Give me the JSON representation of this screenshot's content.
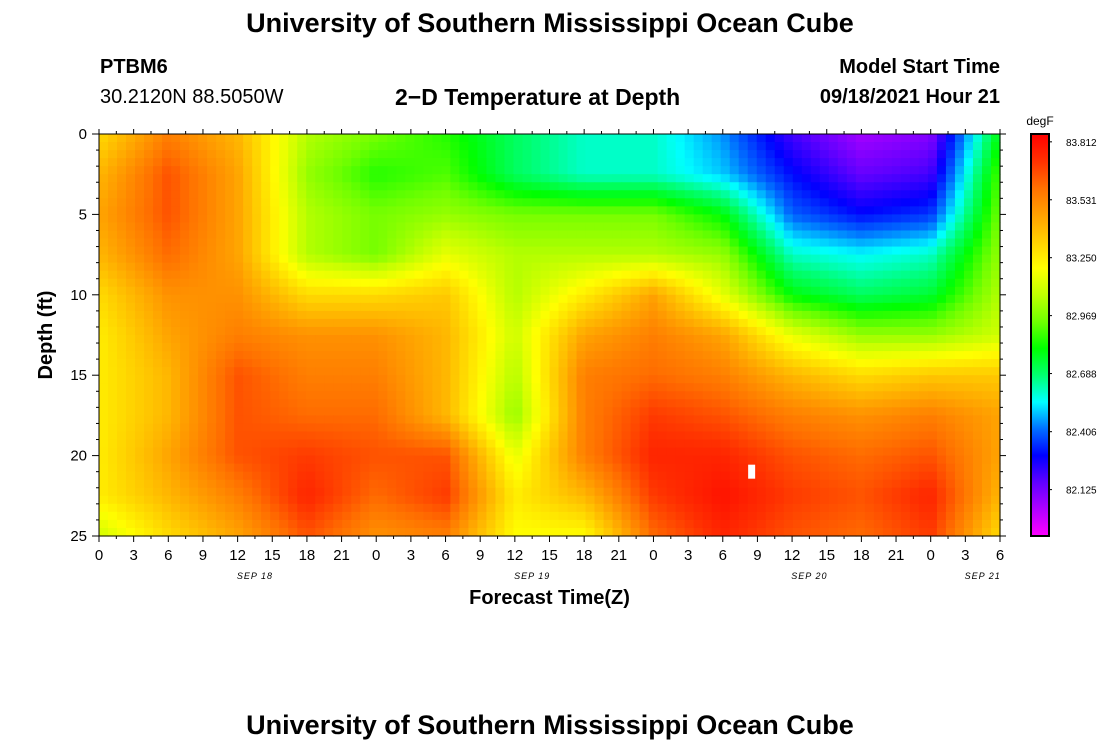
{
  "page": {
    "title_top": "University of Southern Mississippi Ocean Cube",
    "title_bottom": "University of Southern Mississippi Ocean Cube",
    "station_id": "PTBM6",
    "station_coords": "30.2120N  88.5050W",
    "plot_title": "2−D Temperature at Depth",
    "model_start_label": "Model Start Time",
    "model_start_value": "09/18/2021 Hour 21"
  },
  "colors": {
    "scale": [
      "#ff00ff",
      "#b000ff",
      "#6000ff",
      "#0000ff",
      "#0070ff",
      "#00ffff",
      "#00ff70",
      "#00ff00",
      "#70ff00",
      "#c0ff00",
      "#ffff00",
      "#ffd000",
      "#ffa000",
      "#ff7000",
      "#ff3000",
      "#ff0000"
    ],
    "marker": "#ffffff"
  },
  "chart_data": {
    "type": "heatmap",
    "title": "2−D Temperature at Depth",
    "xlabel": "Forecast Time(Z)",
    "ylabel": "Depth (ft)",
    "units": "degF",
    "x_ticks": [
      "0",
      "3",
      "6",
      "9",
      "12",
      "15",
      "18",
      "21",
      "0",
      "3",
      "6",
      "9",
      "12",
      "15",
      "18",
      "21",
      "0",
      "3",
      "6",
      "9",
      "12",
      "15",
      "18",
      "21",
      "0",
      "3",
      "6"
    ],
    "date_labels": [
      {
        "label": "SEP 18",
        "at_tick": 4.5
      },
      {
        "label": "SEP 19",
        "at_tick": 12.5
      },
      {
        "label": "SEP 20",
        "at_tick": 20.5
      },
      {
        "label": "SEP 21",
        "at_tick": 25.5
      }
    ],
    "y_ticks": [
      0,
      5,
      10,
      15,
      20,
      25
    ],
    "ylim": [
      0,
      25
    ],
    "xlim_hours": [
      0,
      78
    ],
    "colorbar": {
      "label": "degF",
      "min": 81.9,
      "max": 83.85,
      "ticks": [
        83.812,
        83.531,
        83.25,
        82.969,
        82.688,
        82.406,
        82.125
      ]
    },
    "times_hours": [
      0,
      6,
      12,
      18,
      24,
      30,
      36,
      42,
      48,
      54,
      60,
      66,
      72,
      78
    ],
    "depths_ft": [
      0,
      2.5,
      5,
      7.5,
      10,
      12.5,
      15,
      17.5,
      20,
      22.5,
      25
    ],
    "temperature_degF": [
      [
        83.3,
        83.55,
        83.4,
        83.05,
        82.95,
        82.85,
        82.7,
        82.6,
        82.6,
        82.45,
        82.2,
        82.05,
        82.1,
        82.8
      ],
      [
        83.4,
        83.65,
        83.45,
        83.0,
        82.85,
        82.9,
        82.7,
        82.6,
        82.6,
        82.5,
        82.3,
        82.15,
        82.2,
        82.9
      ],
      [
        83.45,
        83.65,
        83.45,
        83.05,
        82.95,
        83.0,
        82.95,
        82.95,
        82.95,
        82.8,
        82.4,
        82.3,
        82.35,
        82.95
      ],
      [
        83.4,
        83.6,
        83.45,
        83.05,
        82.95,
        83.15,
        83.05,
        83.05,
        83.05,
        83.0,
        82.6,
        82.55,
        82.6,
        83.0
      ],
      [
        83.3,
        83.5,
        83.5,
        83.3,
        83.3,
        83.35,
        83.05,
        83.25,
        83.45,
        83.15,
        82.8,
        82.7,
        82.75,
        83.05
      ],
      [
        83.25,
        83.45,
        83.55,
        83.5,
        83.5,
        83.4,
        83.1,
        83.45,
        83.55,
        83.45,
        83.15,
        83.0,
        83.0,
        83.1
      ],
      [
        83.25,
        83.4,
        83.65,
        83.55,
        83.55,
        83.4,
        83.05,
        83.55,
        83.6,
        83.55,
        83.4,
        83.3,
        83.35,
        83.35
      ],
      [
        83.25,
        83.4,
        83.65,
        83.6,
        83.6,
        83.4,
        83.0,
        83.55,
        83.7,
        83.65,
        83.55,
        83.5,
        83.55,
        83.45
      ],
      [
        83.25,
        83.45,
        83.65,
        83.7,
        83.65,
        83.65,
        83.15,
        83.55,
        83.75,
        83.75,
        83.65,
        83.6,
        83.65,
        83.45
      ],
      [
        83.25,
        83.4,
        83.55,
        83.75,
        83.6,
        83.7,
        83.25,
        83.4,
        83.7,
        83.8,
        83.7,
        83.65,
        83.75,
        83.4
      ],
      [
        83.1,
        83.3,
        83.45,
        83.65,
        83.5,
        83.55,
        83.2,
        83.2,
        83.6,
        83.75,
        83.65,
        83.6,
        83.7,
        83.3
      ]
    ],
    "marker": {
      "time_hours": 56.5,
      "depth_ft": 21
    }
  }
}
